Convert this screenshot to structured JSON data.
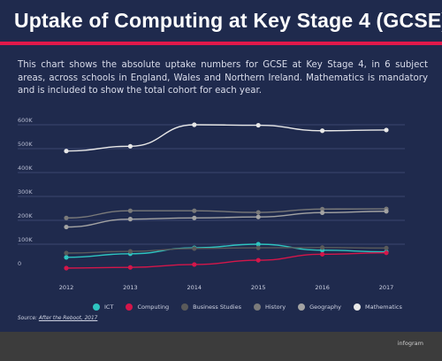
{
  "header": {
    "title": "Uptake of Computing at Key Stage 4 (GCSE)",
    "description": "This chart shows the absolute uptake numbers for GCSE at Key Stage 4, in 6 subject areas, across schools in England, Wales and Northern Ireland. Mathematics is mandatory and is included to show the total cohort for each year."
  },
  "source": {
    "prefix": "Source: ",
    "link": "After the Reboot, 2017"
  },
  "footer": {
    "brand": "infogram"
  },
  "colors": {
    "background": "#1f2a4d",
    "accent_rule": "#e0194a",
    "ICT": "#2ec4c0",
    "Computing": "#d4164a",
    "Business Studies": "#5a5a5a",
    "History": "#7a7a7a",
    "Geography": "#a3a3a3",
    "Mathematics": "#e8e8e8"
  },
  "chart_data": {
    "type": "line",
    "title": "",
    "xlabel": "",
    "ylabel": "",
    "x": [
      "2012",
      "2013",
      "2014",
      "2015",
      "2016",
      "2017"
    ],
    "ylim": [
      0,
      600000
    ],
    "yticks": [
      "0",
      "100K",
      "200K",
      "300K",
      "400K",
      "500K",
      "600K"
    ],
    "grid": true,
    "legend_position": "bottom",
    "series": [
      {
        "name": "ICT",
        "values": [
          45000,
          60000,
          85000,
          100000,
          75000,
          68000
        ]
      },
      {
        "name": "Computing",
        "values": [
          0,
          3000,
          15000,
          33000,
          58000,
          64000
        ]
      },
      {
        "name": "Business Studies",
        "values": [
          63000,
          70000,
          82000,
          85000,
          86000,
          84000
        ]
      },
      {
        "name": "History",
        "values": [
          210000,
          240000,
          240000,
          233000,
          247000,
          248000
        ]
      },
      {
        "name": "Geography",
        "values": [
          172000,
          205000,
          210000,
          214000,
          232000,
          238000
        ]
      },
      {
        "name": "Mathematics",
        "values": [
          490000,
          510000,
          600000,
          598000,
          575000,
          578000
        ]
      }
    ]
  }
}
